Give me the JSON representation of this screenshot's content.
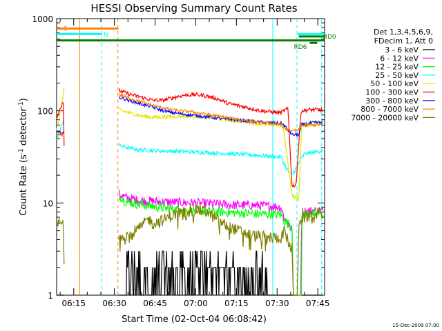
{
  "chart_data": {
    "type": "line",
    "title": "HESSI Observing Summary Count Rates",
    "xlabel": "Start Time (02-Oct-04 06:08:42)",
    "ylabel": "Count Rate (s",
    "ylabel_sup": "-1",
    "ylabel_tail": " detector",
    "ylabel_end": ")",
    "yscale": "log",
    "xlim_minutes": [
      368.7,
      467.5
    ],
    "ylim": [
      1,
      1000
    ],
    "x_ticks": [
      {
        "t": 375,
        "label": "06:15"
      },
      {
        "t": 390,
        "label": "06:30"
      },
      {
        "t": 405,
        "label": "06:45"
      },
      {
        "t": 420,
        "label": "07:00"
      },
      {
        "t": 435,
        "label": "07:15"
      },
      {
        "t": 450,
        "label": "07:30"
      },
      {
        "t": 465,
        "label": "07:45"
      }
    ],
    "y_ticks": [
      {
        "v": 1,
        "label": "1"
      },
      {
        "v": 10,
        "label": "10"
      },
      {
        "v": 100,
        "label": "100"
      },
      {
        "v": 1000,
        "label": "1000"
      }
    ],
    "legend": {
      "placement": "right",
      "header": [
        "Det 1,3,4,5,6,9,",
        "FDecim 1, Att 0"
      ],
      "entries": [
        {
          "label": "3 - 6 keV",
          "color": "#000000"
        },
        {
          "label": "6 - 12 keV",
          "color": "#ff00ff"
        },
        {
          "label": "12 - 25 keV",
          "color": "#00ff00"
        },
        {
          "label": "25 - 50 keV",
          "color": "#00ffff"
        },
        {
          "label": "50 - 100 keV",
          "color": "#e5e500"
        },
        {
          "label": "100 - 300 keV",
          "color": "#ff0000"
        },
        {
          "label": "300 - 800 keV",
          "color": "#0000ff"
        },
        {
          "label": "800 - 7000 keV",
          "color": "#ff8000"
        },
        {
          "label": "7000 - 20000 keV",
          "color": "#808000"
        }
      ]
    },
    "flag_bars": [
      {
        "label": "S",
        "color": "#ff8000",
        "t0": 368.7,
        "t1": 391.5,
        "y": 780
      },
      {
        "label": "N",
        "color": "#00ffff",
        "t0": 368.7,
        "t1": 385.5,
        "y": 680
      },
      {
        "label": "",
        "color": "#00ffff",
        "t0": 457.5,
        "t1": 467.5,
        "y": 680
      },
      {
        "label": "",
        "color": "#008000",
        "t0": 368.7,
        "t1": 467.5,
        "y": 580
      },
      {
        "label": "RD0",
        "color": "#008000",
        "t0": 458.0,
        "t1": 467.5,
        "y": 640
      },
      {
        "label": "RD6",
        "color": "#008000",
        "t0": 462.0,
        "t1": 464.8,
        "y": 545
      }
    ],
    "vlines": [
      {
        "t": 377.2,
        "color": "#ff8000",
        "style": "solid"
      },
      {
        "t": 385.3,
        "color": "#00ffff",
        "style": "dashed"
      },
      {
        "t": 391.3,
        "color": "#ff8000",
        "style": "dashed"
      },
      {
        "t": 448.4,
        "color": "#00ffff",
        "style": "solid"
      },
      {
        "t": 457.3,
        "color": "#00ffff",
        "style": "dashed"
      },
      {
        "t": 466.4,
        "color": "#00ffff",
        "style": "dashed"
      }
    ],
    "series": [
      {
        "name": "3 - 6 keV",
        "color": "#000000",
        "noise": 0.9,
        "points": [
          [
            368.7,
            1.0
          ],
          [
            371.4,
            1.0
          ],
          [
            371.5,
            1.0
          ],
          [
            375.5,
            1.0
          ],
          [
            391.5,
            1.0
          ],
          [
            394.3,
            1.0
          ],
          [
            394.5,
            3.0
          ],
          [
            398.3,
            3.0
          ],
          [
            398.5,
            2.0
          ],
          [
            402.5,
            1.0
          ],
          [
            407.0,
            1.5
          ],
          [
            412.0,
            2.0
          ],
          [
            417.0,
            2.0
          ],
          [
            422.0,
            2.0
          ],
          [
            428.0,
            1.5
          ],
          [
            433.0,
            1.2
          ],
          [
            438.0,
            1.2
          ],
          [
            442.0,
            1.2
          ],
          [
            447.0,
            1.0
          ],
          [
            451.5,
            1.0
          ],
          [
            457.0,
            1.0
          ],
          [
            467.0,
            1.0
          ]
        ]
      },
      {
        "name": "6 - 12 keV",
        "color": "#ff00ff",
        "noise": 0.12,
        "points": [
          [
            391.8,
            12.5
          ],
          [
            394.0,
            11.5
          ],
          [
            398.0,
            10.8
          ],
          [
            402.0,
            10.5
          ],
          [
            410.0,
            10.2
          ],
          [
            418.0,
            10.0
          ],
          [
            426.0,
            9.8
          ],
          [
            434.0,
            9.5
          ],
          [
            442.0,
            9.4
          ],
          [
            448.0,
            9.2
          ],
          [
            451.5,
            9.0
          ],
          [
            452.5,
            7.0
          ],
          [
            455.5,
            5.0
          ],
          [
            456.0,
            1.0
          ],
          [
            458.8,
            1.0
          ],
          [
            459.0,
            8.0
          ],
          [
            462.0,
            8.2
          ],
          [
            467.0,
            8.2
          ]
        ]
      },
      {
        "name": "12 - 25 keV",
        "color": "#00ff00",
        "noise": 0.12,
        "points": [
          [
            391.8,
            12.0
          ],
          [
            394.0,
            10.5
          ],
          [
            398.0,
            9.8
          ],
          [
            404.0,
            9.2
          ],
          [
            412.0,
            8.5
          ],
          [
            420.0,
            8.2
          ],
          [
            428.0,
            8.0
          ],
          [
            436.0,
            7.8
          ],
          [
            444.0,
            7.6
          ],
          [
            451.5,
            7.5
          ],
          [
            452.5,
            6.5
          ],
          [
            455.5,
            5.5
          ],
          [
            456.0,
            1.0
          ],
          [
            459.0,
            1.0
          ],
          [
            459.2,
            7.5
          ],
          [
            463.0,
            7.6
          ],
          [
            467.0,
            7.6
          ]
        ]
      },
      {
        "name": "25 - 50 keV",
        "color": "#00ffff",
        "noise": 0.05,
        "points": [
          [
            368.7,
            48.0
          ],
          [
            371.0,
            75.0
          ],
          [
            371.4,
            90.0
          ],
          [
            391.8,
            42.0
          ],
          [
            398.0,
            38.0
          ],
          [
            404.0,
            37.0
          ],
          [
            410.0,
            36.5
          ],
          [
            418.0,
            36.0
          ],
          [
            426.0,
            35.0
          ],
          [
            434.0,
            34.0
          ],
          [
            442.0,
            33.0
          ],
          [
            448.0,
            32.0
          ],
          [
            451.5,
            31.5
          ],
          [
            452.5,
            27.0
          ],
          [
            454.0,
            22.0
          ],
          [
            455.5,
            20.0
          ],
          [
            460.0,
            34.0
          ],
          [
            467.0,
            37.0
          ]
        ]
      },
      {
        "name": "50 - 100 keV",
        "color": "#e5e500",
        "noise": 0.05,
        "points": [
          [
            368.7,
            60.0
          ],
          [
            371.4,
            160.0
          ],
          [
            371.5,
            200.0
          ],
          [
            371.8,
            50.0
          ],
          [
            391.8,
            102.0
          ],
          [
            396.0,
            94.0
          ],
          [
            400.0,
            88.0
          ],
          [
            404.0,
            85.0
          ],
          [
            410.0,
            86.0
          ],
          [
            416.0,
            88.0
          ],
          [
            420.0,
            87.0
          ],
          [
            426.0,
            84.0
          ],
          [
            432.0,
            80.0
          ],
          [
            438.0,
            76.0
          ],
          [
            444.0,
            72.0
          ],
          [
            448.0,
            70.0
          ],
          [
            451.5,
            70.0
          ],
          [
            452.5,
            60.0
          ],
          [
            455.5,
            12.0
          ],
          [
            458.0,
            11.0
          ],
          [
            459.0,
            68.0
          ],
          [
            463.0,
            72.0
          ],
          [
            467.0,
            73.0
          ]
        ]
      },
      {
        "name": "100 - 300 keV",
        "color": "#ff0000",
        "noise": 0.05,
        "points": [
          [
            368.7,
            85.0
          ],
          [
            371.2,
            130.0
          ],
          [
            371.6,
            20.0
          ],
          [
            391.8,
            165.0
          ],
          [
            396.0,
            150.0
          ],
          [
            400.0,
            140.0
          ],
          [
            404.0,
            130.0
          ],
          [
            408.0,
            130.0
          ],
          [
            412.0,
            140.0
          ],
          [
            416.0,
            148.0
          ],
          [
            420.0,
            150.0
          ],
          [
            424.0,
            145.0
          ],
          [
            428.0,
            135.0
          ],
          [
            432.0,
            120.0
          ],
          [
            438.0,
            110.0
          ],
          [
            444.0,
            100.0
          ],
          [
            448.0,
            97.0
          ],
          [
            451.5,
            95.0
          ],
          [
            452.5,
            100.0
          ],
          [
            454.0,
            105.0
          ],
          [
            455.5,
            15.0
          ],
          [
            457.0,
            16.0
          ],
          [
            458.8,
            100.0
          ],
          [
            463.0,
            103.0
          ],
          [
            467.0,
            102.0
          ]
        ]
      },
      {
        "name": "300 - 800 keV",
        "color": "#0000ff",
        "noise": 0.04,
        "points": [
          [
            368.7,
            58.0
          ],
          [
            371.5,
            58.0
          ],
          [
            391.8,
            140.0
          ],
          [
            396.0,
            128.0
          ],
          [
            400.0,
            118.0
          ],
          [
            404.0,
            110.0
          ],
          [
            408.0,
            100.0
          ],
          [
            412.0,
            95.0
          ],
          [
            418.0,
            90.0
          ],
          [
            424.0,
            86.0
          ],
          [
            430.0,
            82.0
          ],
          [
            436.0,
            79.0
          ],
          [
            442.0,
            76.0
          ],
          [
            448.0,
            74.0
          ],
          [
            451.5,
            73.0
          ],
          [
            452.5,
            70.0
          ],
          [
            455.5,
            55.0
          ],
          [
            458.0,
            55.0
          ],
          [
            459.0,
            70.0
          ],
          [
            463.0,
            74.0
          ],
          [
            467.0,
            75.0
          ]
        ]
      },
      {
        "name": "800 - 7000 keV",
        "color": "#ff8000",
        "noise": 0.035,
        "points": [
          [
            368.7,
            55.0
          ],
          [
            371.5,
            55.0
          ],
          [
            391.8,
            150.0
          ],
          [
            396.0,
            135.0
          ],
          [
            400.0,
            125.0
          ],
          [
            404.0,
            115.0
          ],
          [
            408.0,
            108.0
          ],
          [
            412.0,
            102.0
          ],
          [
            418.0,
            98.0
          ],
          [
            424.0,
            92.0
          ],
          [
            430.0,
            86.0
          ],
          [
            436.0,
            80.0
          ],
          [
            442.0,
            76.0
          ],
          [
            448.0,
            73.0
          ],
          [
            451.5,
            72.0
          ],
          [
            452.5,
            64.0
          ],
          [
            455.5,
            60.0
          ],
          [
            458.0,
            62.0
          ],
          [
            459.0,
            70.0
          ],
          [
            463.0,
            70.0
          ],
          [
            467.0,
            71.0
          ]
        ]
      },
      {
        "name": "7000 - 20000 keV",
        "color": "#808000",
        "noise": 0.15,
        "points": [
          [
            368.7,
            6.0
          ],
          [
            371.4,
            6.0
          ],
          [
            371.5,
            1.0
          ],
          [
            375.5,
            1.0
          ],
          [
            391.8,
            4.5
          ],
          [
            396.0,
            4.6
          ],
          [
            400.0,
            5.5
          ],
          [
            402.5,
            6.8
          ],
          [
            404.0,
            6.0
          ],
          [
            408.0,
            6.5
          ],
          [
            412.0,
            7.5
          ],
          [
            416.0,
            8.2
          ],
          [
            420.0,
            8.5
          ],
          [
            424.0,
            8.0
          ],
          [
            428.0,
            6.5
          ],
          [
            432.0,
            5.5
          ],
          [
            436.0,
            5.0
          ],
          [
            440.0,
            4.5
          ],
          [
            444.0,
            4.3
          ],
          [
            448.0,
            4.2
          ],
          [
            451.5,
            4.2
          ],
          [
            452.5,
            5.0
          ],
          [
            455.5,
            3.0
          ],
          [
            456.0,
            1.0
          ],
          [
            457.5,
            1.0
          ],
          [
            458.0,
            6.5
          ],
          [
            463.0,
            7.5
          ],
          [
            467.0,
            8.0
          ]
        ]
      }
    ],
    "gaps": [
      [
        371.6,
        391.5
      ]
    ],
    "footer": "15-Dec-2009 07:00"
  }
}
